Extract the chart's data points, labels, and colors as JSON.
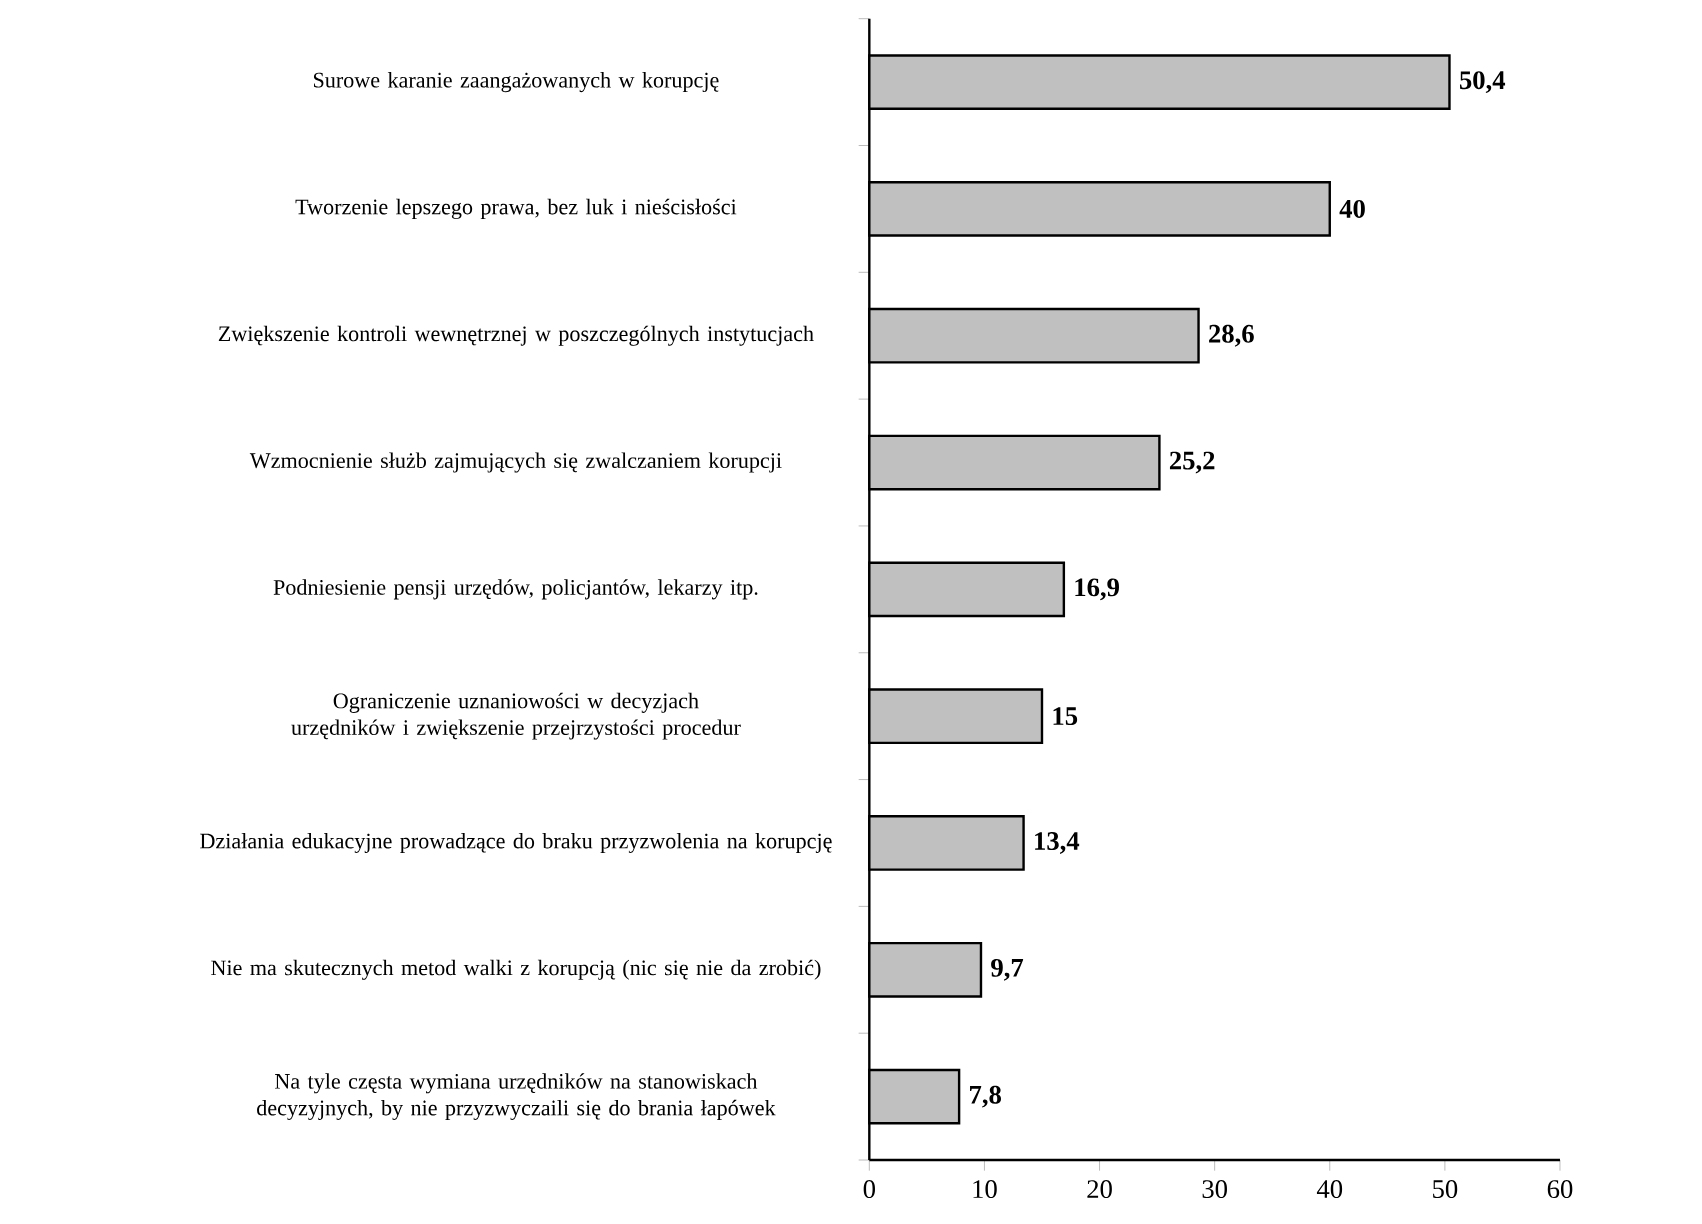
{
  "chart_data": {
    "type": "bar",
    "orientation": "horizontal",
    "categories": [
      "Surowe karanie zaangażowanych w korupcję",
      "Tworzenie lepszego prawa, bez luk i nieścisłości",
      "Zwiększenie kontroli wewnętrznej w poszczególnych instytucjach",
      "Wzmocnienie służb zajmujących się zwalczaniem korupcji",
      "Podniesienie pensji urzędów, policjantów, lekarzy itp.",
      "Ograniczenie uznaniowości w decyzjach urzędników i zwiększenie przejrzystości procedur",
      "Działania edukacyjne prowadzące do braku przyzwolenia na korupcję",
      "Nie ma skutecznych metod walki z korupcją (nic się nie da zrobić)",
      "Na tyle częsta wymiana urzędników na stanowiskach decyzyjnych, by nie przyzwyczaili się do brania łapówek"
    ],
    "values": [
      50.4,
      40,
      28.6,
      25.2,
      16.9,
      15,
      13.4,
      9.7,
      7.8
    ],
    "value_labels": [
      "50,4",
      "40",
      "28,6",
      "25,2",
      "16,9",
      "15",
      "13,4",
      "9,7",
      "7,8"
    ],
    "color": "#c0c0c0",
    "xlim": [
      0,
      60
    ],
    "xticks": [
      0,
      10,
      20,
      30,
      40,
      50,
      60
    ]
  }
}
